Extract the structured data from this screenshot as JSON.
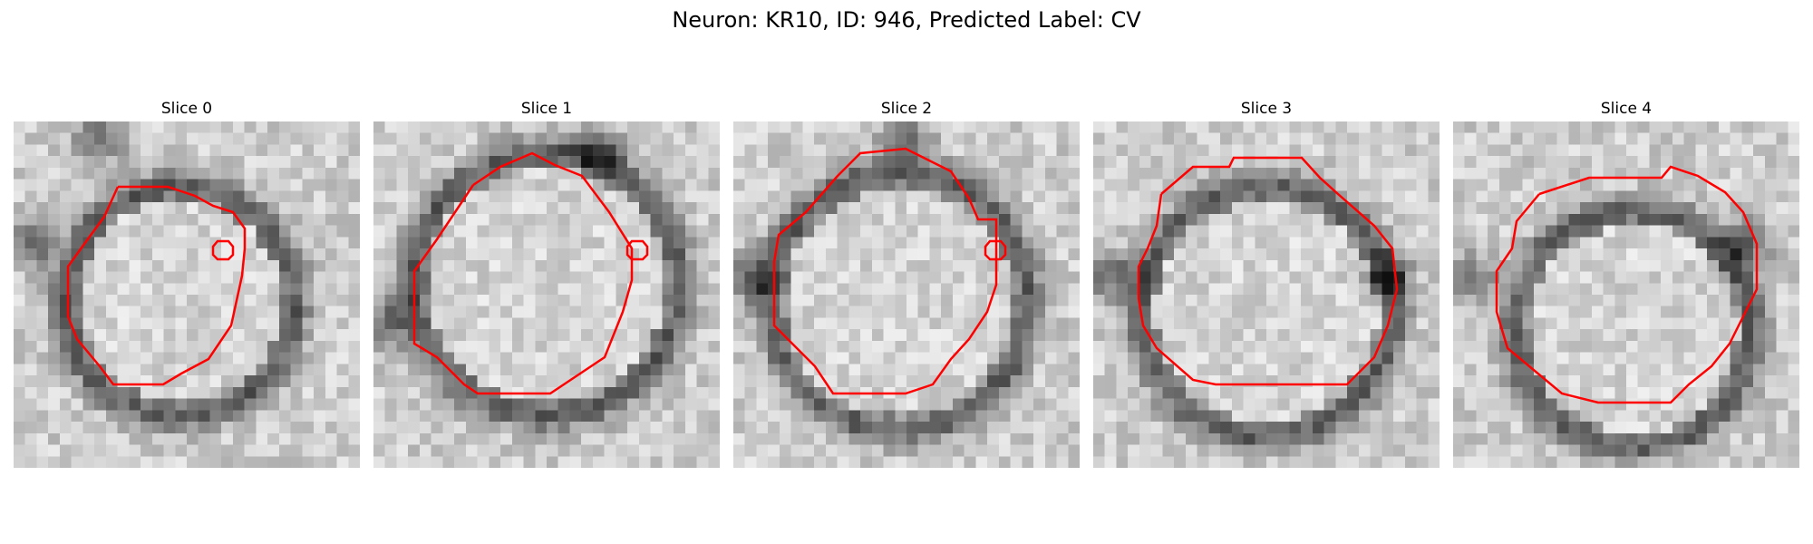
{
  "figure": {
    "title": "Neuron: KR10, ID: 946, Predicted Label: CV"
  },
  "panels": [
    {
      "title": "Slice 0"
    },
    {
      "title": "Slice 1"
    },
    {
      "title": "Slice 2"
    },
    {
      "title": "Slice 3"
    },
    {
      "title": "Slice 4"
    }
  ],
  "colors": {
    "contour": "#ff0000",
    "colormap": "gray",
    "background": "#ffffff"
  }
}
